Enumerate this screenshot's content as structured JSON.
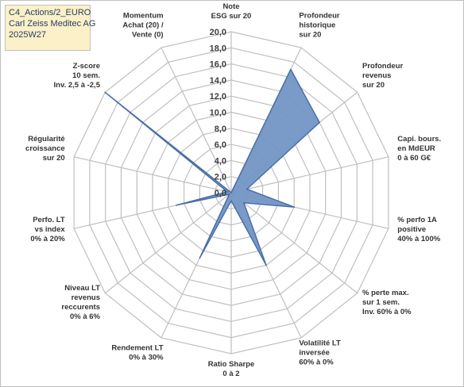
{
  "header": {
    "line1": "C4_Actions/2_EURO",
    "line2": "Carl Zeiss Meditec AG",
    "line3": "2025W27"
  },
  "colors": {
    "fill": "#7395c4",
    "stroke": "#4a6fa8",
    "grid": "#bfbfbf",
    "header_bg": "#fbf0c8"
  },
  "chart_data": {
    "type": "radar",
    "rlim": [
      0,
      20
    ],
    "ticks": [
      "0,0",
      "2,0",
      "4,0",
      "6,0",
      "8,0",
      "10,0",
      "12,0",
      "14,0",
      "16,0",
      "18,0",
      "20,0"
    ],
    "axes": [
      [
        "Note",
        "ESG sur 20"
      ],
      [
        "Profondeur",
        "historique",
        "sur 20"
      ],
      [
        "Profondeur",
        "revenus",
        "sur 20"
      ],
      [
        "Capi. bours.",
        "en MdEUR",
        "0 à 60 G€"
      ],
      [
        "% perfo 1A",
        "positive",
        "40% à 100%"
      ],
      [
        "% perte max.",
        "sur 1 sem.",
        "Inv. 60% à 0%"
      ],
      [
        "Volatilité LT",
        "inversée",
        "60% à 0%"
      ],
      [
        "Ratio Sharpe",
        "0 à 2"
      ],
      [
        "Rendement LT",
        "0% à 30%"
      ],
      [
        "Niveau LT",
        "revenus",
        "reccurents",
        "0% à 6%"
      ],
      [
        "Perfo. LT",
        "vs index",
        "0% à 20%"
      ],
      [
        "Régularité",
        "croissance",
        "sur 20"
      ],
      [
        "Z-score",
        "10 sem.",
        "Inv. 2,5 à -2,5"
      ],
      [
        "Momentum",
        "Achat (20) /",
        "Vente (0)"
      ]
    ],
    "values": [
      0.0,
      17.0,
      14.0,
      2.0,
      8.0,
      2.0,
      10.0,
      1.0,
      9.0,
      0.3,
      7.0,
      0.5,
      20.0,
      0.0
    ]
  }
}
